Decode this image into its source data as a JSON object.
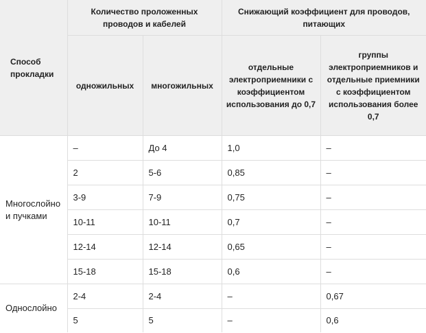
{
  "table": {
    "headers": {
      "method": "Способ прокладки",
      "count_group": "Количество проложенных проводов и кабелей",
      "single_core": "одножильных",
      "multi_core": "многожильных",
      "coef_group": "Снижающий коэффициент для проводов, питающих",
      "coef_separate": "отдельные электроприемники с коэффициентом использования до 0,7",
      "coef_groups": "группы электроприемников и отдельные приемники с коэффициентом использования более 0,7"
    },
    "groups": [
      {
        "method": "Многослойно и пучками",
        "rows": [
          {
            "single": "–",
            "multi": "До 4",
            "coef_a": "1,0",
            "coef_b": "–"
          },
          {
            "single": "2",
            "multi": "5-6",
            "coef_a": "0,85",
            "coef_b": "–"
          },
          {
            "single": "3-9",
            "multi": "7-9",
            "coef_a": "0,75",
            "coef_b": "–"
          },
          {
            "single": "10-11",
            "multi": "10-11",
            "coef_a": "0,7",
            "coef_b": "–"
          },
          {
            "single": "12-14",
            "multi": "12-14",
            "coef_a": "0,65",
            "coef_b": "–"
          },
          {
            "single": "15-18",
            "multi": "15-18",
            "coef_a": "0,6",
            "coef_b": "–"
          }
        ]
      },
      {
        "method": "Однослойно",
        "rows": [
          {
            "single": "2-4",
            "multi": "2-4",
            "coef_a": "–",
            "coef_b": "0,67"
          },
          {
            "single": "5",
            "multi": "5",
            "coef_a": "–",
            "coef_b": "0,6"
          }
        ]
      }
    ]
  }
}
